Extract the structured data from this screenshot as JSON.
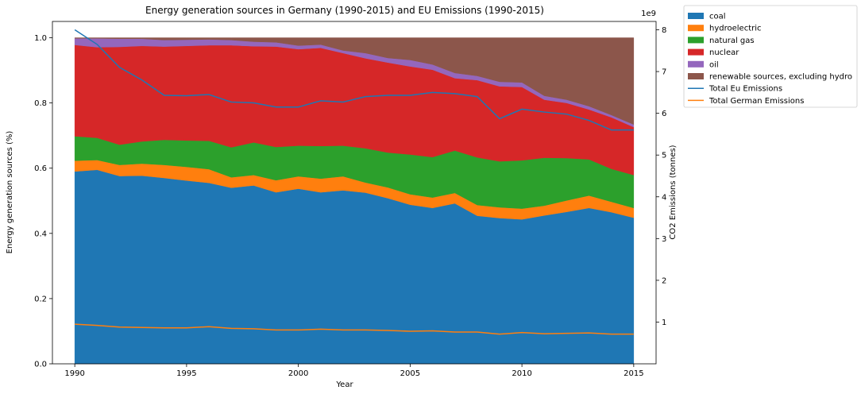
{
  "chart_data": {
    "type": "area",
    "title": "Energy generation sources in Germany (1990-2015) and EU Emissions (1990-2015)",
    "xlabel": "Year",
    "ylabel": "Energy generation sources (%)",
    "ylabel_right": "CO2 Emissions (tonnes)",
    "right_axis_multiplier": "1e9",
    "xlim": [
      1989,
      2016
    ],
    "ylim": [
      0,
      1.05
    ],
    "ylim_right": [
      0,
      8.2
    ],
    "x_ticks": [
      "1990",
      "1995",
      "2000",
      "2005",
      "2010",
      "2015"
    ],
    "y_ticks": [
      "0.0",
      "0.2",
      "0.4",
      "0.6",
      "0.8",
      "1.0"
    ],
    "y_ticks_right": [
      "1",
      "2",
      "3",
      "4",
      "5",
      "6",
      "7",
      "8"
    ],
    "legend_position": "outside upper right",
    "x": [
      1990,
      1991,
      1992,
      1993,
      1994,
      1995,
      1996,
      1997,
      1998,
      1999,
      2000,
      2001,
      2002,
      2003,
      2004,
      2005,
      2006,
      2007,
      2008,
      2009,
      2010,
      2011,
      2012,
      2013,
      2014,
      2015
    ],
    "series": [
      {
        "name": "coal",
        "color": "#1f77b4",
        "values": [
          0.59,
          0.595,
          0.576,
          0.577,
          0.57,
          0.562,
          0.555,
          0.54,
          0.547,
          0.526,
          0.537,
          0.526,
          0.532,
          0.525,
          0.508,
          0.488,
          0.478,
          0.492,
          0.454,
          0.447,
          0.443,
          0.455,
          0.466,
          0.478,
          0.465,
          0.448
        ]
      },
      {
        "name": "hydroelectric",
        "color": "#ff7f0e",
        "values": [
          0.033,
          0.03,
          0.034,
          0.037,
          0.04,
          0.042,
          0.042,
          0.032,
          0.032,
          0.037,
          0.038,
          0.042,
          0.043,
          0.031,
          0.033,
          0.032,
          0.032,
          0.032,
          0.033,
          0.033,
          0.033,
          0.03,
          0.035,
          0.038,
          0.032,
          0.03
        ]
      },
      {
        "name": "natural gas",
        "color": "#2ca02c",
        "values": [
          0.075,
          0.068,
          0.062,
          0.068,
          0.077,
          0.081,
          0.087,
          0.092,
          0.1,
          0.102,
          0.094,
          0.1,
          0.094,
          0.105,
          0.107,
          0.122,
          0.124,
          0.13,
          0.146,
          0.141,
          0.148,
          0.147,
          0.13,
          0.111,
          0.101,
          0.101
        ]
      },
      {
        "name": "nuclear",
        "color": "#d62728",
        "values": [
          0.28,
          0.278,
          0.3,
          0.293,
          0.286,
          0.29,
          0.293,
          0.313,
          0.295,
          0.308,
          0.296,
          0.301,
          0.284,
          0.276,
          0.276,
          0.27,
          0.268,
          0.222,
          0.237,
          0.23,
          0.225,
          0.178,
          0.169,
          0.153,
          0.158,
          0.147
        ]
      },
      {
        "name": "oil",
        "color": "#9467bd",
        "values": [
          0.02,
          0.027,
          0.025,
          0.022,
          0.02,
          0.019,
          0.018,
          0.016,
          0.014,
          0.013,
          0.011,
          0.01,
          0.008,
          0.016,
          0.014,
          0.02,
          0.016,
          0.016,
          0.013,
          0.014,
          0.014,
          0.012,
          0.01,
          0.01,
          0.007,
          0.008
        ]
      },
      {
        "name": "renewable sources, excluding hydro",
        "color": "#8c564b",
        "values": [
          0.002,
          0.002,
          0.003,
          0.003,
          0.007,
          0.006,
          0.005,
          0.007,
          0.012,
          0.014,
          0.024,
          0.021,
          0.039,
          0.047,
          0.062,
          0.068,
          0.082,
          0.108,
          0.117,
          0.135,
          0.137,
          0.178,
          0.19,
          0.21,
          0.237,
          0.266
        ]
      }
    ],
    "lines": [
      {
        "name": "Total Eu Emissions",
        "color": "#1f77b4",
        "axis": "right",
        "values": [
          8.0,
          7.65,
          7.1,
          6.8,
          6.43,
          6.42,
          6.45,
          6.27,
          6.25,
          6.15,
          6.15,
          6.3,
          6.27,
          6.4,
          6.43,
          6.43,
          6.5,
          6.47,
          6.4,
          5.87,
          6.1,
          6.03,
          5.98,
          5.83,
          5.6,
          5.6
        ]
      },
      {
        "name": "Total German Emissions",
        "color": "#ff7f0e",
        "axis": "right",
        "values": [
          0.95,
          0.92,
          0.88,
          0.87,
          0.86,
          0.86,
          0.89,
          0.85,
          0.84,
          0.81,
          0.81,
          0.83,
          0.81,
          0.81,
          0.8,
          0.78,
          0.79,
          0.76,
          0.76,
          0.71,
          0.75,
          0.72,
          0.73,
          0.74,
          0.71,
          0.71
        ]
      }
    ]
  }
}
